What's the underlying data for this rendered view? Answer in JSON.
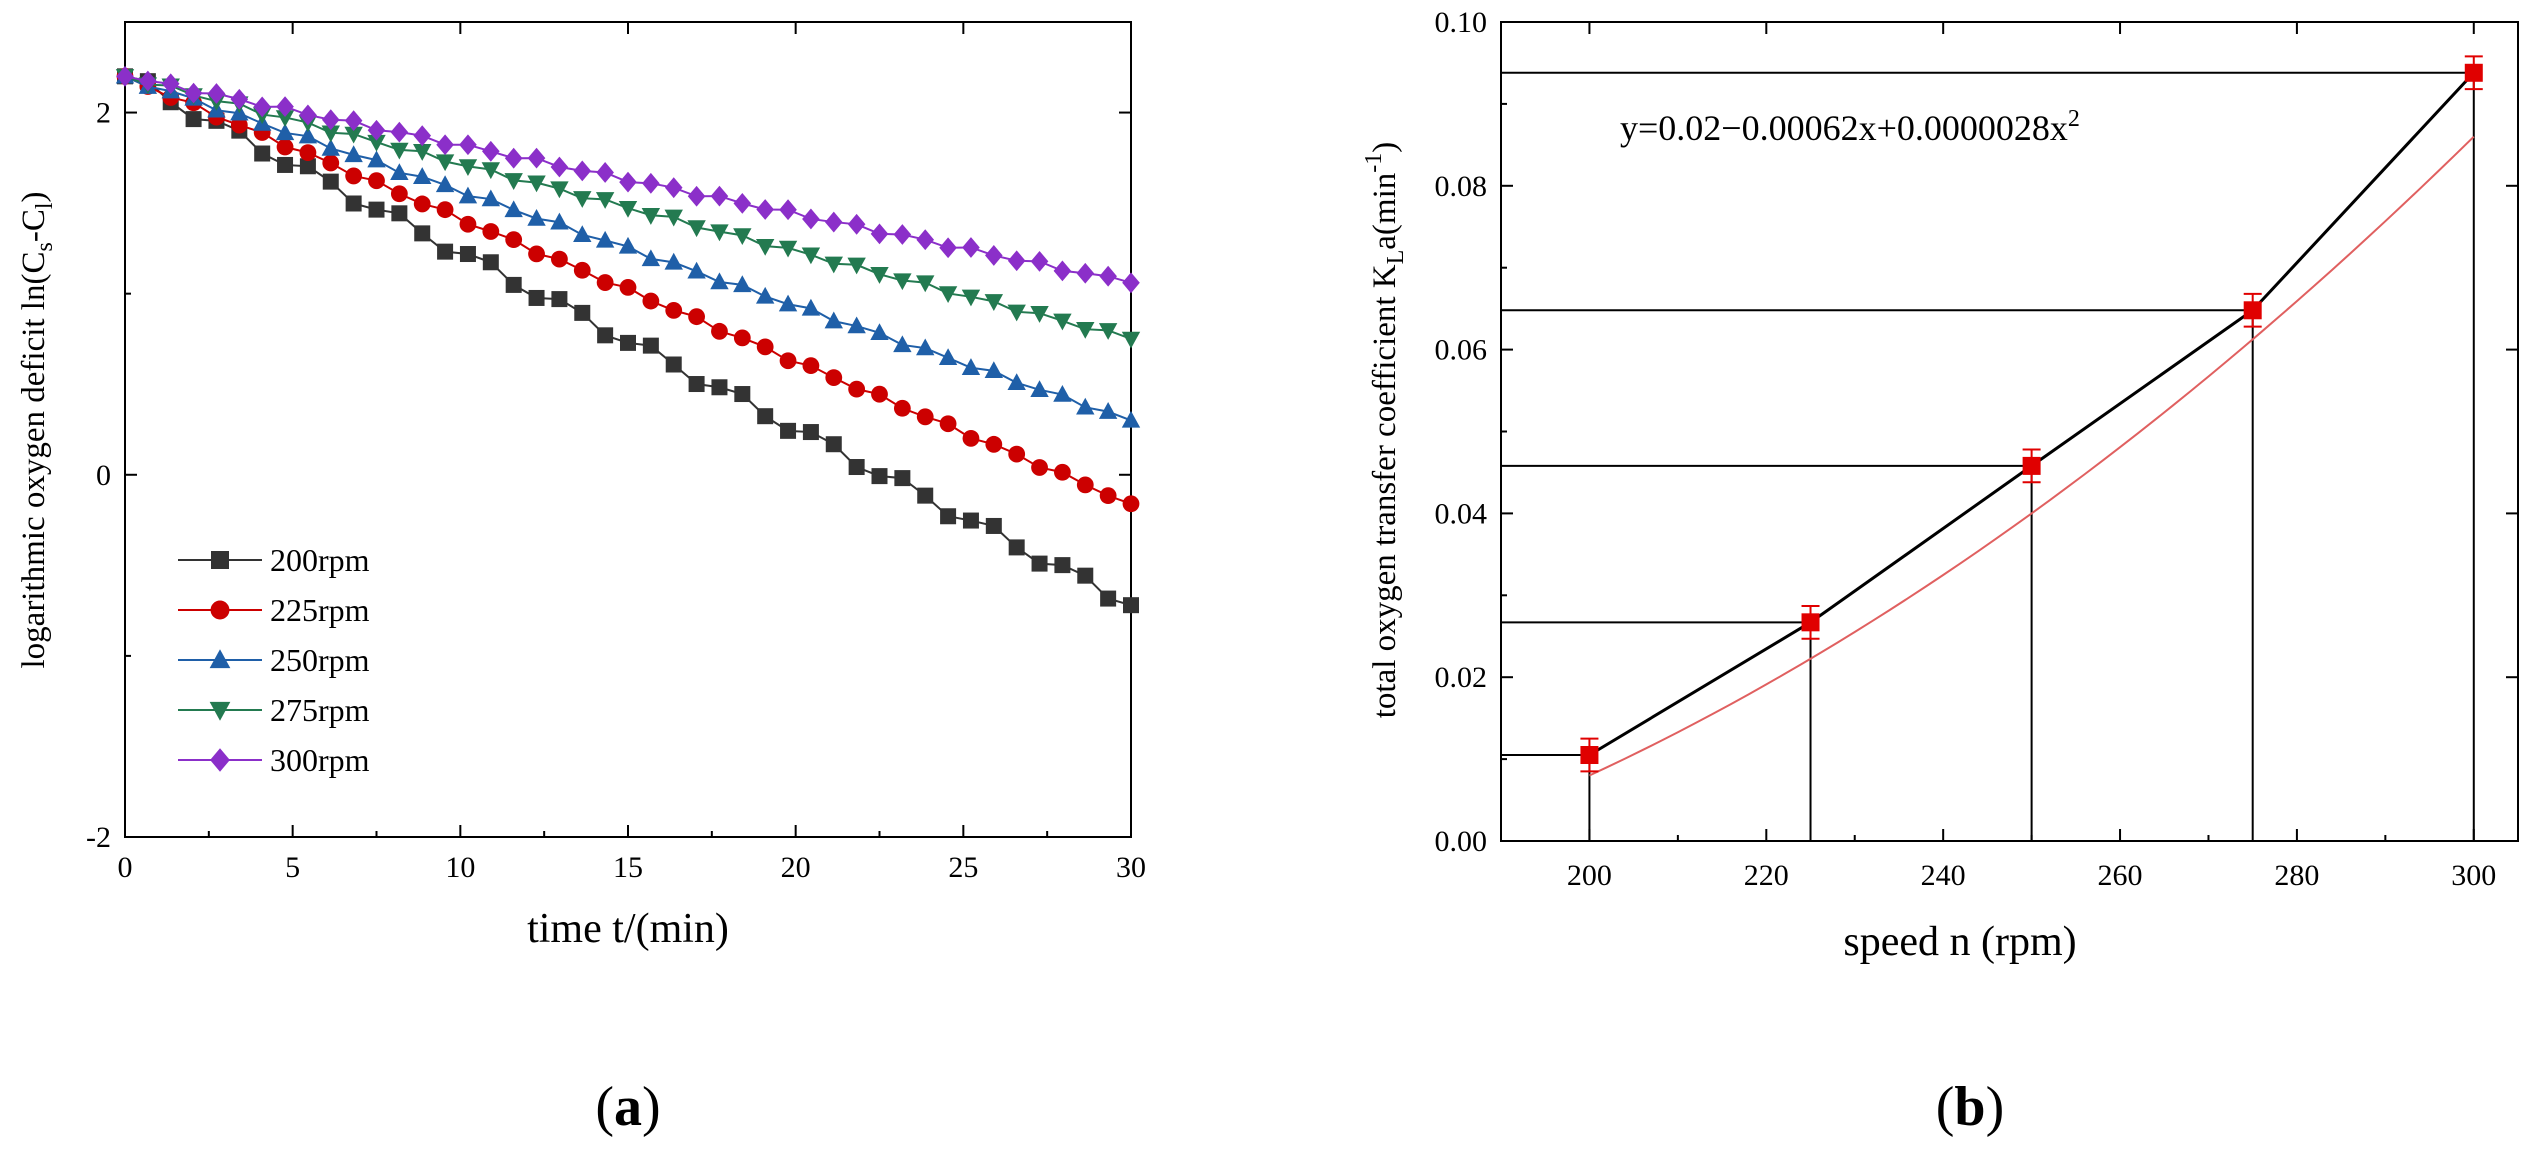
{
  "chart_data": [
    {
      "panel": "a",
      "panel_label": "a",
      "type": "line",
      "xlabel": "time  t/(min)",
      "ylabel_main": "logarithmic oxygen deficit   ln(C",
      "ylabel_sub1": "s",
      "ylabel_mid": "-C",
      "ylabel_sub2": "l",
      "ylabel_end": ")",
      "xlim": [
        0,
        30
      ],
      "ylim": [
        -2,
        2.5
      ],
      "xticks": [
        0,
        5,
        10,
        15,
        20,
        25,
        30
      ],
      "yticks": [
        -2,
        0,
        2
      ],
      "legend_position": "bottom-left",
      "series": [
        {
          "name": "200rpm",
          "color": "#333333",
          "marker": "square",
          "start": 2.2,
          "end": -0.72
        },
        {
          "name": "225rpm",
          "color": "#cc0000",
          "marker": "circle",
          "start": 2.2,
          "end": -0.16
        },
        {
          "name": "250rpm",
          "color": "#1f5fa8",
          "marker": "triangle-up",
          "start": 2.2,
          "end": 0.3
        },
        {
          "name": "275rpm",
          "color": "#237a50",
          "marker": "triangle-down",
          "start": 2.2,
          "end": 0.75
        },
        {
          "name": "300rpm",
          "color": "#8b2fc9",
          "marker": "diamond",
          "start": 2.2,
          "end": 1.06
        }
      ],
      "n_points": 45
    },
    {
      "panel": "b",
      "panel_label": "b",
      "type": "scatter",
      "xlabel": "speed  n (rpm)",
      "ylabel_main": "total oxygen transfer coefficient    K",
      "ylabel_sub": "L",
      "ylabel_mid": "a(min",
      "ylabel_sup": "-1",
      "ylabel_end": ")",
      "equation_main": "y=0.02−0.00062x+0.0000028x",
      "equation_sup": "2",
      "xlim": [
        190,
        305
      ],
      "ylim": [
        0,
        0.1
      ],
      "xticks": [
        200,
        220,
        240,
        260,
        280,
        300
      ],
      "yticks": [
        "0.00",
        "0.02",
        "0.04",
        "0.06",
        "0.08",
        "0.10"
      ],
      "points": [
        {
          "x": 200,
          "y": 0.0105,
          "err": 0.002
        },
        {
          "x": 225,
          "y": 0.0267,
          "err": 0.002
        },
        {
          "x": 250,
          "y": 0.0458,
          "err": 0.002
        },
        {
          "x": 275,
          "y": 0.0648,
          "err": 0.002
        },
        {
          "x": 300,
          "y": 0.0938,
          "err": 0.002
        }
      ],
      "guide_lines_y": [
        0.0105,
        0.0267,
        0.0458,
        0.0648,
        0.0938
      ],
      "point_color": "#e00000",
      "fit_color": "#e06060"
    }
  ]
}
